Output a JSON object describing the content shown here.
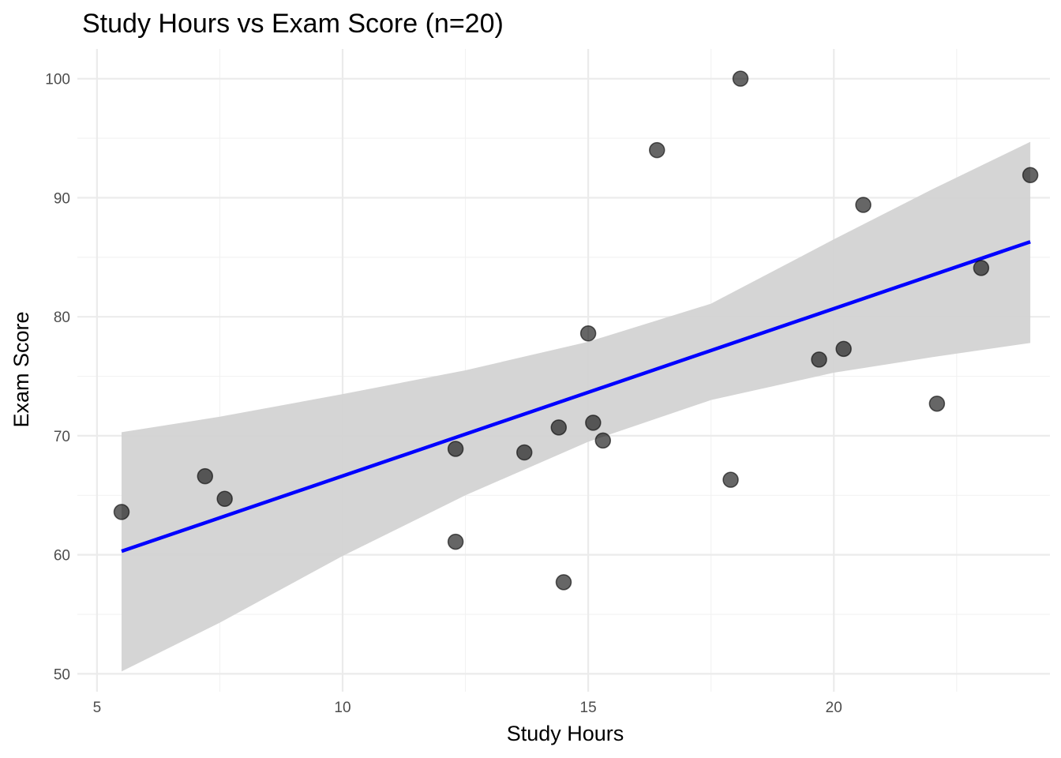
{
  "chart_data": {
    "type": "scatter",
    "title": "Study Hours vs Exam Score (n=20)",
    "xlabel": "Study Hours",
    "ylabel": "Exam Score",
    "xlim": [
      4.6,
      24.4
    ],
    "ylim": [
      48.5,
      102.5
    ],
    "x_major_ticks": [
      5,
      10,
      15,
      20
    ],
    "x_minor_ticks": [
      7.5,
      12.5,
      17.5,
      22.5
    ],
    "y_major_ticks": [
      50,
      60,
      70,
      80,
      90,
      100
    ],
    "y_minor_ticks": [
      55,
      65,
      75,
      85,
      95
    ],
    "grid": true,
    "points": [
      {
        "x": 5.5,
        "y": 63.6
      },
      {
        "x": 7.2,
        "y": 66.6
      },
      {
        "x": 7.6,
        "y": 64.7
      },
      {
        "x": 12.3,
        "y": 68.9
      },
      {
        "x": 12.3,
        "y": 61.1
      },
      {
        "x": 13.7,
        "y": 68.6
      },
      {
        "x": 14.4,
        "y": 70.7
      },
      {
        "x": 14.5,
        "y": 57.7
      },
      {
        "x": 15.0,
        "y": 78.6
      },
      {
        "x": 15.1,
        "y": 71.1
      },
      {
        "x": 15.3,
        "y": 69.6
      },
      {
        "x": 16.4,
        "y": 94.0
      },
      {
        "x": 17.9,
        "y": 66.3
      },
      {
        "x": 18.1,
        "y": 100.0
      },
      {
        "x": 19.7,
        "y": 76.4
      },
      {
        "x": 20.2,
        "y": 77.3
      },
      {
        "x": 20.6,
        "y": 89.4
      },
      {
        "x": 22.1,
        "y": 72.7
      },
      {
        "x": 23.0,
        "y": 84.1
      },
      {
        "x": 24.0,
        "y": 91.9
      }
    ],
    "fit_line": {
      "x": [
        5.5,
        24.0
      ],
      "y": [
        60.3,
        86.3
      ],
      "color": "#0000ff"
    },
    "confidence_band": [
      {
        "x": 5.5,
        "lower": 50.2,
        "upper": 70.3
      },
      {
        "x": 7.5,
        "lower": 54.3,
        "upper": 71.6
      },
      {
        "x": 10.0,
        "lower": 59.9,
        "upper": 73.5
      },
      {
        "x": 12.5,
        "lower": 65.0,
        "upper": 75.5
      },
      {
        "x": 15.0,
        "lower": 69.5,
        "upper": 77.9
      },
      {
        "x": 17.5,
        "lower": 73.0,
        "upper": 81.1
      },
      {
        "x": 20.0,
        "lower": 75.3,
        "upper": 86.5
      },
      {
        "x": 22.0,
        "lower": 76.6,
        "upper": 90.7
      },
      {
        "x": 24.0,
        "lower": 77.8,
        "upper": 94.7
      }
    ],
    "colors": {
      "point_fill": "#000000",
      "band_fill": "#d3d3d3",
      "grid_major": "#ebebeb",
      "grid_minor": "#f2f2f2"
    }
  }
}
